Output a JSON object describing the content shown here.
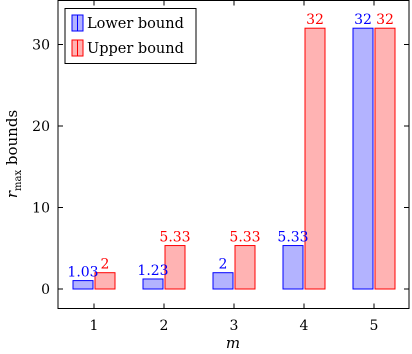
{
  "chart_data": {
    "type": "bar",
    "categories": [
      "1",
      "2",
      "3",
      "4",
      "5"
    ],
    "series": [
      {
        "name": "Lower bound",
        "values": [
          1.03,
          1.23,
          2,
          5.33,
          32
        ],
        "labels": [
          "1.03",
          "1.23",
          "2",
          "5.33",
          "32"
        ],
        "fill": "#b3b3ff",
        "stroke": "#0000ff",
        "label_color": "#0000ff"
      },
      {
        "name": "Upper bound",
        "values": [
          2,
          5.33,
          5.33,
          32,
          32
        ],
        "labels": [
          "2",
          "5.33",
          "5.33",
          "32",
          "32"
        ],
        "fill": "#ffb3b3",
        "stroke": "#ff0000",
        "label_color": "#ff0000"
      }
    ],
    "title": "",
    "xlabel": "m",
    "ylabel_main": "r",
    "ylabel_sub": "max",
    "ylabel_rest": " bounds",
    "ylim": [
      -2.5,
      35
    ],
    "yticks": [
      0,
      10,
      20,
      30
    ],
    "ytick_labels": [
      "0",
      "10",
      "20",
      "30"
    ],
    "grid": false,
    "legend": {
      "position": "top-left"
    }
  }
}
